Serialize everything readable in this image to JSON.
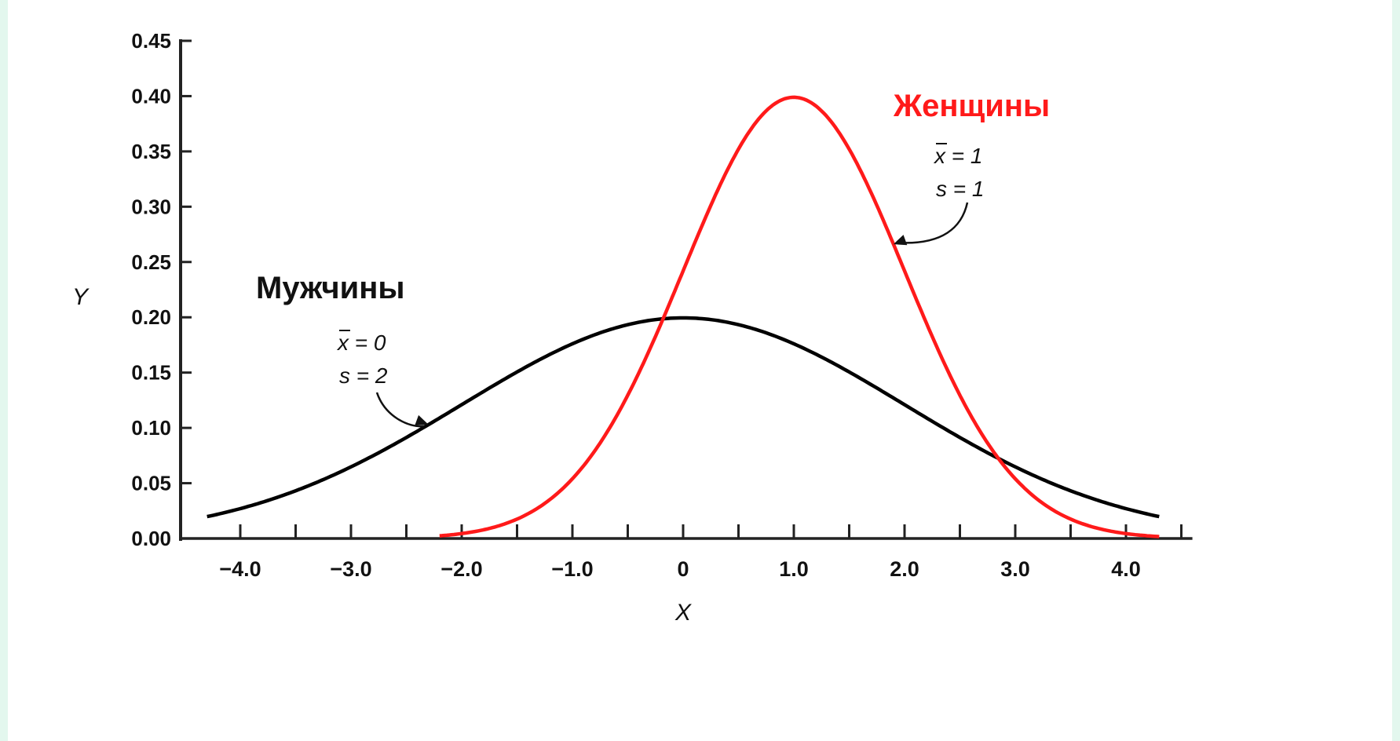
{
  "colors": {
    "background": "#e3f7ee",
    "plot_background": "#ffffff",
    "men": "#000000",
    "women": "#ff1a1a"
  },
  "chart_data": {
    "type": "line",
    "title": "",
    "xlabel": "X",
    "ylabel": "Y",
    "xlim": [
      -4.4,
      4.6
    ],
    "ylim": [
      0,
      0.45
    ],
    "x_ticks": [
      -4.0,
      -3.5,
      -3.0,
      -2.5,
      -2.0,
      -1.5,
      -1.0,
      -0.5,
      0,
      0.5,
      1.0,
      1.5,
      2.0,
      2.5,
      3.0,
      3.5,
      4.0,
      4.5
    ],
    "x_tick_labels": [
      {
        "x": -4.0,
        "label": "−4.0"
      },
      {
        "x": -3.0,
        "label": "−3.0"
      },
      {
        "x": -2.0,
        "label": "−2.0"
      },
      {
        "x": -1.0,
        "label": "−1.0"
      },
      {
        "x": 0,
        "label": "0"
      },
      {
        "x": 1.0,
        "label": "1.0"
      },
      {
        "x": 2.0,
        "label": "2.0"
      },
      {
        "x": 3.0,
        "label": "3.0"
      },
      {
        "x": 4.0,
        "label": "4.0"
      }
    ],
    "y_ticks": [
      0.0,
      0.05,
      0.1,
      0.15,
      0.2,
      0.25,
      0.3,
      0.35,
      0.4,
      0.45
    ],
    "y_tick_labels": [
      "0.00",
      "0.05",
      "0.10",
      "0.15",
      "0.20",
      "0.25",
      "0.30",
      "0.35",
      "0.40",
      "0.45"
    ],
    "grid": false,
    "series": [
      {
        "name": "Мужчины",
        "color": "#000000",
        "mean": 0,
        "sd": 2,
        "x_range": [
          -4.3,
          4.3
        ],
        "annotation": {
          "mean_label": "x = 0",
          "sd_label": "s = 2",
          "arrow_target_x": -2.3
        }
      },
      {
        "name": "Женщины",
        "color": "#ff1a1a",
        "mean": 1,
        "sd": 1,
        "x_range": [
          -2.2,
          4.3
        ],
        "annotation": {
          "mean_label": "x = 1",
          "sd_label": "s = 1",
          "arrow_target_x": 1.9
        }
      }
    ]
  }
}
